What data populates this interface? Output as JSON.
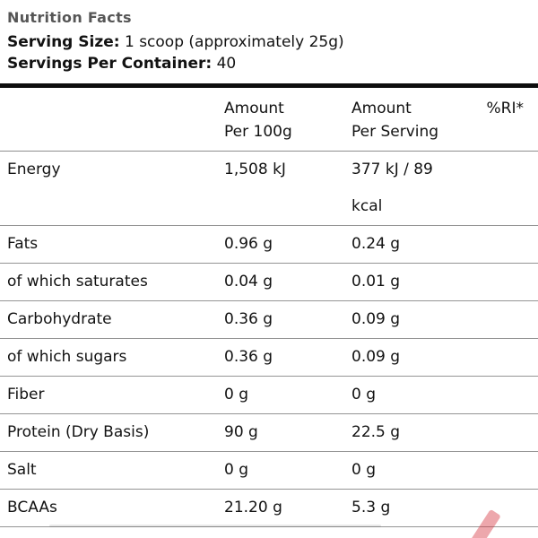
{
  "header": {
    "title": "Nutrition Facts",
    "serving_size_label": "Serving Size:",
    "serving_size_value": "1 scoop (approximately 25g)",
    "servings_label": "Servings Per Container:",
    "servings_value": "40"
  },
  "table": {
    "columns": {
      "per_100g": "Amount\nPer 100g",
      "per_serving": "Amount\nPer Serving",
      "ri": "%RI*"
    },
    "rows": [
      {
        "label": "Energy",
        "per100": "1,508 kJ",
        "perServing": "377 kJ / 89 kcal"
      },
      {
        "label": "Fats",
        "per100": "0.96 g",
        "perServing": "0.24 g"
      },
      {
        "label": "of which saturates",
        "per100": "0.04 g",
        "perServing": "0.01 g"
      },
      {
        "label": "Carbohydrate",
        "per100": "0.36 g",
        "perServing": "0.09 g"
      },
      {
        "label": "of which sugars",
        "per100": "0.36 g",
        "perServing": "0.09 g"
      },
      {
        "label": "Fiber",
        "per100": "0 g",
        "perServing": "0 g"
      },
      {
        "label": "Protein (Dry Basis)",
        "per100": "90 g",
        "perServing": "22.5 g"
      },
      {
        "label": "Salt",
        "per100": "0 g",
        "perServing": "0 g"
      },
      {
        "label": "BCAAs",
        "per100": "21.20 g",
        "perServing": "5.3 g"
      }
    ]
  },
  "colors": {
    "title_gray": "#565656",
    "text": "#121212",
    "rule_gray": "#949494",
    "bar_black": "#0d0d0d",
    "artifact_red": "#d63c46"
  }
}
